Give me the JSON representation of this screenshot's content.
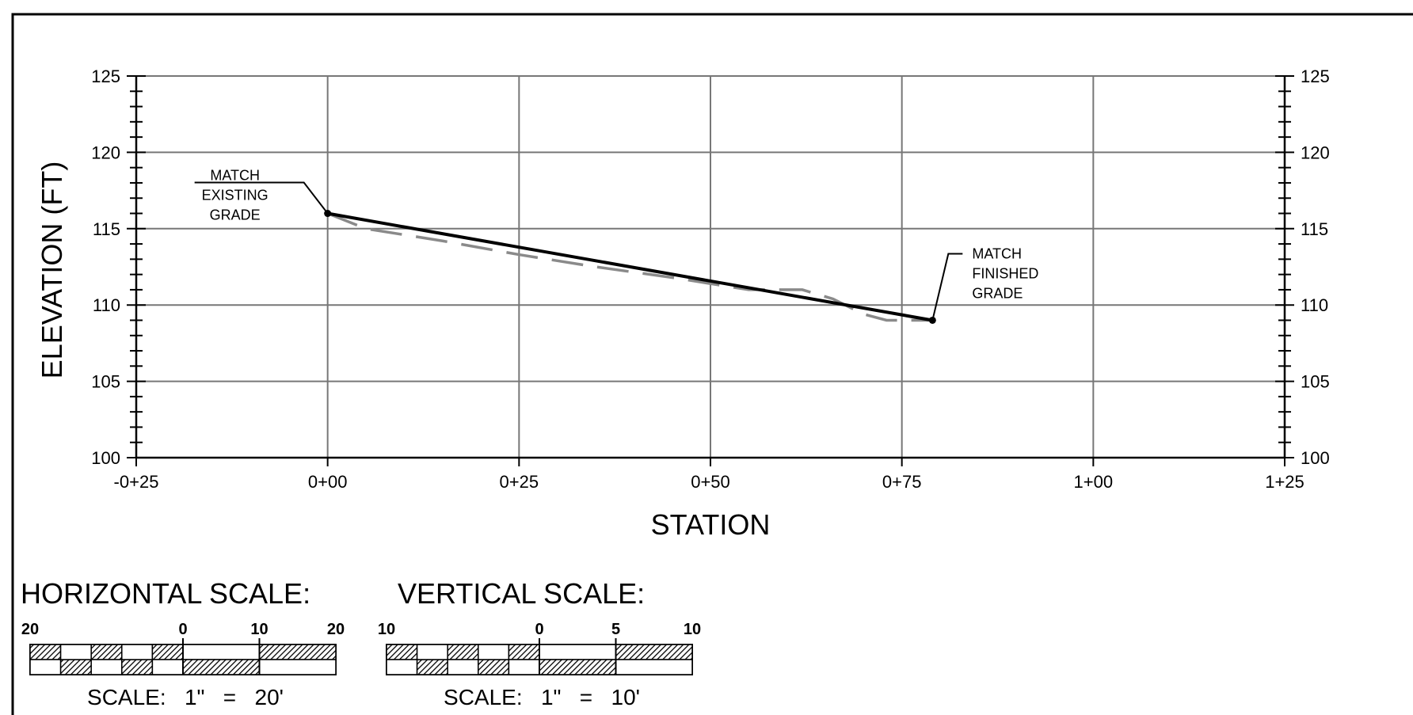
{
  "chart_data": {
    "type": "line",
    "xlabel": "STATION",
    "ylabel": "ELEVATION (FT)",
    "xlim": [
      -25,
      125
    ],
    "ylim": [
      100,
      125
    ],
    "x_ticks": [
      -25,
      0,
      25,
      50,
      75,
      100,
      125
    ],
    "x_tick_labels": [
      "-0+25",
      "0+00",
      "0+25",
      "0+50",
      "0+75",
      "1+00",
      "1+25"
    ],
    "y_ticks": [
      100,
      105,
      110,
      115,
      120,
      125
    ],
    "y_tick_labels": [
      "100",
      "105",
      "110",
      "115",
      "120",
      "125"
    ],
    "grid": true,
    "series": [
      {
        "style": "solid",
        "color": "#000000",
        "x": [
          0,
          79
        ],
        "y": [
          116,
          109
        ]
      },
      {
        "style": "dashed",
        "color": "#8a8a8a",
        "x": [
          0,
          5,
          15,
          25,
          35,
          45,
          55,
          62,
          66,
          70,
          73,
          79
        ],
        "y": [
          116,
          115,
          114.2,
          113.3,
          112.5,
          111.8,
          111.0,
          111.0,
          110.4,
          109.4,
          109.0,
          109.0
        ]
      }
    ],
    "annotations": [
      {
        "lines": [
          "MATCH",
          "EXISTING",
          "GRADE"
        ],
        "x": 0,
        "y": 116
      },
      {
        "lines": [
          "MATCH",
          "FINISHED",
          "GRADE"
        ],
        "x": 79,
        "y": 109
      }
    ]
  },
  "scales": {
    "horizontal": {
      "title": "HORIZONTAL SCALE:",
      "labels": [
        "20",
        "0",
        "10",
        "20"
      ],
      "caption": "SCALE:   1\"   =   20'"
    },
    "vertical": {
      "title": "VERTICAL SCALE:",
      "labels": [
        "10",
        "0",
        "5",
        "10"
      ],
      "caption": "SCALE:   1\"   =   10'"
    }
  }
}
